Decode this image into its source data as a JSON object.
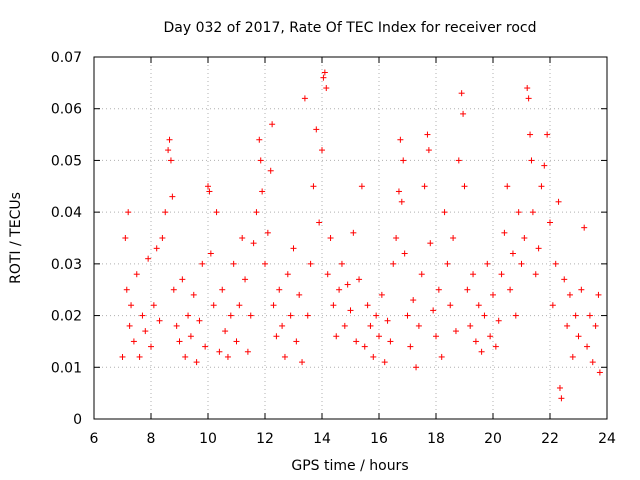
{
  "chart_data": {
    "type": "scatter",
    "title": "Day 032 of 2017, Rate Of TEC Index for receiver rocd",
    "xlabel": "GPS time / hours",
    "ylabel": "ROTI / TECUs",
    "xlim": [
      6,
      24
    ],
    "ylim": [
      0,
      0.07
    ],
    "grid": true,
    "marker": "+",
    "color": "#ff0000",
    "x_ticks": [
      "6",
      "8",
      "10",
      "12",
      "14",
      "16",
      "18",
      "20",
      "22",
      "24"
    ],
    "y_ticks": [
      "0",
      "0.01",
      "0.02",
      "0.03",
      "0.04",
      "0.05",
      "0.06",
      "0.07"
    ],
    "series": [
      {
        "name": "ROTI",
        "points": [
          [
            7.0,
            0.012
          ],
          [
            7.1,
            0.035
          ],
          [
            7.15,
            0.025
          ],
          [
            7.2,
            0.04
          ],
          [
            7.25,
            0.018
          ],
          [
            7.3,
            0.022
          ],
          [
            7.4,
            0.015
          ],
          [
            7.5,
            0.028
          ],
          [
            7.6,
            0.012
          ],
          [
            7.7,
            0.02
          ],
          [
            7.8,
            0.017
          ],
          [
            7.9,
            0.031
          ],
          [
            8.0,
            0.014
          ],
          [
            8.1,
            0.022
          ],
          [
            8.2,
            0.033
          ],
          [
            8.3,
            0.019
          ],
          [
            8.4,
            0.035
          ],
          [
            8.5,
            0.04
          ],
          [
            8.6,
            0.052
          ],
          [
            8.65,
            0.054
          ],
          [
            8.7,
            0.05
          ],
          [
            8.75,
            0.043
          ],
          [
            8.8,
            0.025
          ],
          [
            8.9,
            0.018
          ],
          [
            9.0,
            0.015
          ],
          [
            9.1,
            0.027
          ],
          [
            9.2,
            0.012
          ],
          [
            9.3,
            0.02
          ],
          [
            9.4,
            0.016
          ],
          [
            9.5,
            0.024
          ],
          [
            9.6,
            0.011
          ],
          [
            9.7,
            0.019
          ],
          [
            9.8,
            0.03
          ],
          [
            9.9,
            0.014
          ],
          [
            10.0,
            0.045
          ],
          [
            10.05,
            0.044
          ],
          [
            10.1,
            0.032
          ],
          [
            10.2,
            0.022
          ],
          [
            10.3,
            0.04
          ],
          [
            10.4,
            0.013
          ],
          [
            10.5,
            0.025
          ],
          [
            10.6,
            0.017
          ],
          [
            10.7,
            0.012
          ],
          [
            10.8,
            0.02
          ],
          [
            10.9,
            0.03
          ],
          [
            11.0,
            0.015
          ],
          [
            11.1,
            0.022
          ],
          [
            11.2,
            0.035
          ],
          [
            11.3,
            0.027
          ],
          [
            11.4,
            0.013
          ],
          [
            11.5,
            0.02
          ],
          [
            11.6,
            0.034
          ],
          [
            11.7,
            0.04
          ],
          [
            11.8,
            0.054
          ],
          [
            11.85,
            0.05
          ],
          [
            11.9,
            0.044
          ],
          [
            12.0,
            0.03
          ],
          [
            12.1,
            0.036
          ],
          [
            12.2,
            0.048
          ],
          [
            12.25,
            0.057
          ],
          [
            12.3,
            0.022
          ],
          [
            12.4,
            0.016
          ],
          [
            12.5,
            0.025
          ],
          [
            12.6,
            0.018
          ],
          [
            12.7,
            0.012
          ],
          [
            12.8,
            0.028
          ],
          [
            12.9,
            0.02
          ],
          [
            13.0,
            0.033
          ],
          [
            13.1,
            0.015
          ],
          [
            13.2,
            0.024
          ],
          [
            13.3,
            0.011
          ],
          [
            13.4,
            0.062
          ],
          [
            13.5,
            0.02
          ],
          [
            13.6,
            0.03
          ],
          [
            13.7,
            0.045
          ],
          [
            13.8,
            0.056
          ],
          [
            13.9,
            0.038
          ],
          [
            14.0,
            0.052
          ],
          [
            14.05,
            0.066
          ],
          [
            14.1,
            0.067
          ],
          [
            14.15,
            0.064
          ],
          [
            14.2,
            0.028
          ],
          [
            14.3,
            0.035
          ],
          [
            14.4,
            0.022
          ],
          [
            14.5,
            0.016
          ],
          [
            14.6,
            0.025
          ],
          [
            14.7,
            0.03
          ],
          [
            14.8,
            0.018
          ],
          [
            14.9,
            0.026
          ],
          [
            15.0,
            0.021
          ],
          [
            15.1,
            0.036
          ],
          [
            15.2,
            0.015
          ],
          [
            15.3,
            0.027
          ],
          [
            15.4,
            0.045
          ],
          [
            15.5,
            0.014
          ],
          [
            15.6,
            0.022
          ],
          [
            15.7,
            0.018
          ],
          [
            15.8,
            0.012
          ],
          [
            15.9,
            0.02
          ],
          [
            16.0,
            0.016
          ],
          [
            16.1,
            0.024
          ],
          [
            16.2,
            0.011
          ],
          [
            16.3,
            0.019
          ],
          [
            16.4,
            0.015
          ],
          [
            16.5,
            0.03
          ],
          [
            16.6,
            0.035
          ],
          [
            16.7,
            0.044
          ],
          [
            16.75,
            0.054
          ],
          [
            16.8,
            0.042
          ],
          [
            16.85,
            0.05
          ],
          [
            16.9,
            0.032
          ],
          [
            17.0,
            0.02
          ],
          [
            17.1,
            0.014
          ],
          [
            17.2,
            0.023
          ],
          [
            17.3,
            0.01
          ],
          [
            17.4,
            0.018
          ],
          [
            17.5,
            0.028
          ],
          [
            17.6,
            0.045
          ],
          [
            17.7,
            0.055
          ],
          [
            17.75,
            0.052
          ],
          [
            17.8,
            0.034
          ],
          [
            17.9,
            0.021
          ],
          [
            18.0,
            0.016
          ],
          [
            18.1,
            0.025
          ],
          [
            18.2,
            0.012
          ],
          [
            18.3,
            0.04
          ],
          [
            18.4,
            0.03
          ],
          [
            18.5,
            0.022
          ],
          [
            18.6,
            0.035
          ],
          [
            18.7,
            0.017
          ],
          [
            18.8,
            0.05
          ],
          [
            18.9,
            0.063
          ],
          [
            18.95,
            0.059
          ],
          [
            19.0,
            0.045
          ],
          [
            19.1,
            0.025
          ],
          [
            19.2,
            0.018
          ],
          [
            19.3,
            0.028
          ],
          [
            19.4,
            0.015
          ],
          [
            19.5,
            0.022
          ],
          [
            19.6,
            0.013
          ],
          [
            19.7,
            0.02
          ],
          [
            19.8,
            0.03
          ],
          [
            19.9,
            0.016
          ],
          [
            20.0,
            0.024
          ],
          [
            20.1,
            0.014
          ],
          [
            20.2,
            0.019
          ],
          [
            20.3,
            0.028
          ],
          [
            20.4,
            0.036
          ],
          [
            20.5,
            0.045
          ],
          [
            20.6,
            0.025
          ],
          [
            20.7,
            0.032
          ],
          [
            20.8,
            0.02
          ],
          [
            20.9,
            0.04
          ],
          [
            21.0,
            0.03
          ],
          [
            21.1,
            0.035
          ],
          [
            21.2,
            0.064
          ],
          [
            21.25,
            0.062
          ],
          [
            21.3,
            0.055
          ],
          [
            21.35,
            0.05
          ],
          [
            21.4,
            0.04
          ],
          [
            21.5,
            0.028
          ],
          [
            21.6,
            0.033
          ],
          [
            21.7,
            0.045
          ],
          [
            21.8,
            0.049
          ],
          [
            21.9,
            0.055
          ],
          [
            22.0,
            0.038
          ],
          [
            22.1,
            0.022
          ],
          [
            22.2,
            0.03
          ],
          [
            22.3,
            0.042
          ],
          [
            22.35,
            0.006
          ],
          [
            22.4,
            0.004
          ],
          [
            22.5,
            0.027
          ],
          [
            22.6,
            0.018
          ],
          [
            22.7,
            0.024
          ],
          [
            22.8,
            0.012
          ],
          [
            22.9,
            0.02
          ],
          [
            23.0,
            0.016
          ],
          [
            23.1,
            0.025
          ],
          [
            23.2,
            0.037
          ],
          [
            23.3,
            0.014
          ],
          [
            23.4,
            0.02
          ],
          [
            23.5,
            0.011
          ],
          [
            23.6,
            0.018
          ],
          [
            23.7,
            0.024
          ],
          [
            23.75,
            0.009
          ]
        ]
      }
    ]
  }
}
